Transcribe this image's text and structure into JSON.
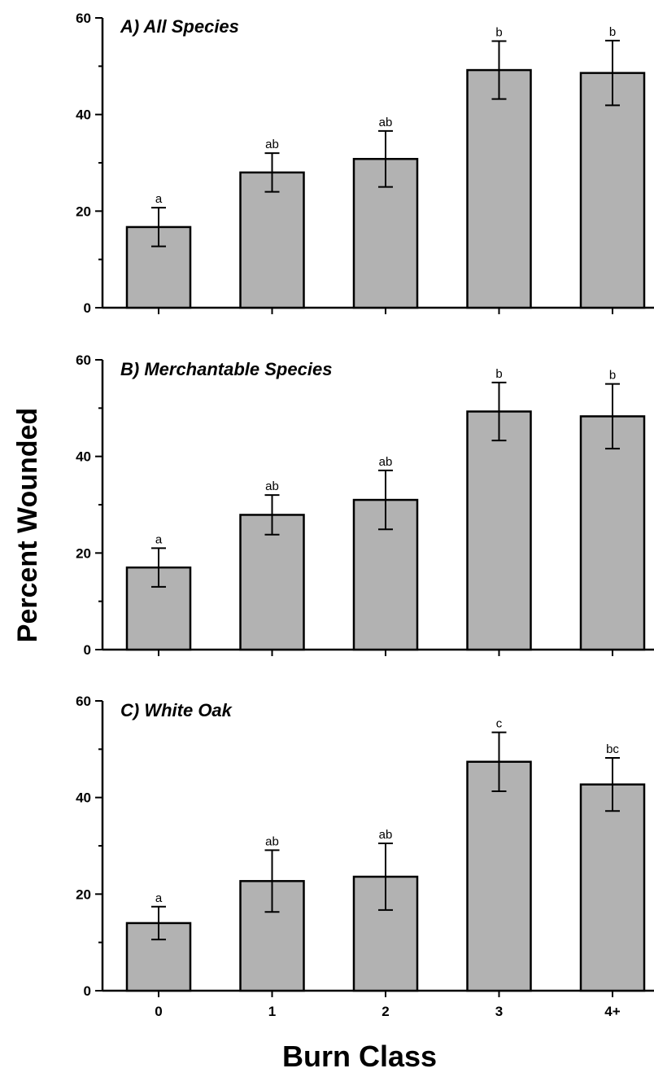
{
  "figure": {
    "ylabel": "Percent Wounded",
    "xlabel": "Burn Class"
  },
  "chart_data": [
    {
      "type": "bar",
      "title": "A) All Species",
      "categories": [
        "0",
        "1",
        "2",
        "3",
        "4+"
      ],
      "values": [
        16.7,
        28,
        30.8,
        49.2,
        48.6
      ],
      "errors": [
        4,
        4,
        5.8,
        6,
        6.7
      ],
      "letters": [
        "a",
        "ab",
        "ab",
        "b",
        "b"
      ],
      "ylim": [
        0,
        60
      ],
      "yticks": [
        0,
        20,
        40,
        60
      ],
      "xlabel": "Burn Class",
      "ylabel": "Percent Wounded",
      "grid": false
    },
    {
      "type": "bar",
      "title": "B) Merchantable Species",
      "categories": [
        "0",
        "1",
        "2",
        "3",
        "4+"
      ],
      "values": [
        17,
        27.9,
        31,
        49.3,
        48.3
      ],
      "errors": [
        4,
        4.1,
        6.1,
        6,
        6.7
      ],
      "letters": [
        "a",
        "ab",
        "ab",
        "b",
        "b"
      ],
      "ylim": [
        0,
        60
      ],
      "yticks": [
        0,
        20,
        40,
        60
      ],
      "xlabel": "Burn Class",
      "ylabel": "Percent Wounded",
      "grid": false
    },
    {
      "type": "bar",
      "title": "C) White Oak",
      "categories": [
        "0",
        "1",
        "2",
        "3",
        "4+"
      ],
      "values": [
        14,
        22.7,
        23.6,
        47.4,
        42.7
      ],
      "errors": [
        3.4,
        6.4,
        6.9,
        6.1,
        5.5
      ],
      "letters": [
        "a",
        "ab",
        "ab",
        "c",
        "bc"
      ],
      "ylim": [
        0,
        60
      ],
      "yticks": [
        0,
        20,
        40,
        60
      ],
      "xlabel": "Burn Class",
      "ylabel": "Percent Wounded",
      "grid": false
    }
  ]
}
